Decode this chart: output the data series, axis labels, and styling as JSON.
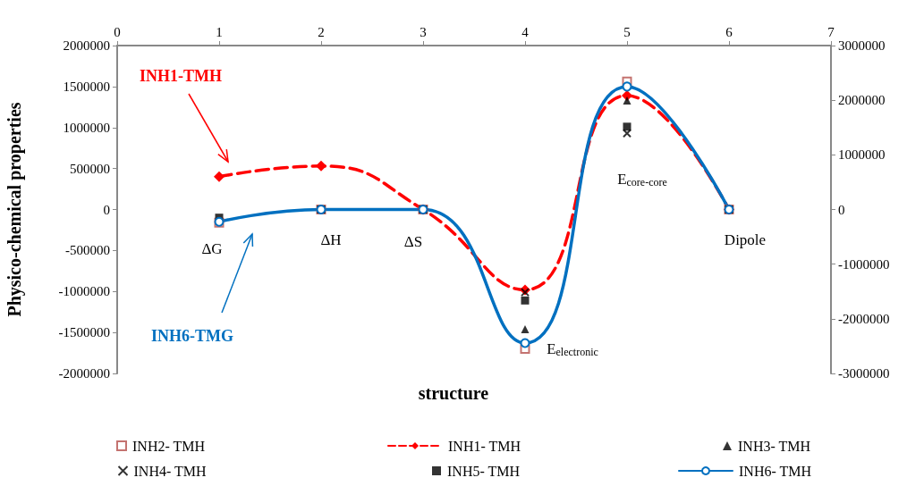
{
  "chart_data": {
    "type": "scatter",
    "xlabel": "structure",
    "ylabel": "Physico-chemical properties",
    "xlim": [
      0,
      7
    ],
    "xticks": [
      0,
      1,
      2,
      3,
      4,
      5,
      6,
      7
    ],
    "ylim": [
      -2000000,
      2000000
    ],
    "yticks": [
      -2000000,
      -1500000,
      -1000000,
      -500000,
      0,
      500000,
      1000000,
      1500000,
      2000000
    ],
    "y2lim": [
      -3000000,
      3000000
    ],
    "y2ticks": [
      -3000000,
      -2000000,
      -1000000,
      0,
      1000000,
      2000000,
      3000000
    ],
    "grid": false,
    "legend": "bottom",
    "x": [
      1,
      2,
      3,
      4,
      5,
      6
    ],
    "series": [
      {
        "name": "INH2- TMH",
        "marker": "square",
        "color": "#b5504c",
        "values": [
          -160000,
          0,
          0,
          -1700000,
          1560000,
          0
        ]
      },
      {
        "name": "INH1- TMH",
        "type": "line",
        "marker": "diamond",
        "line_style": "dashed",
        "color": "#ff0000",
        "values": [
          400000,
          530000,
          0,
          -980000,
          1390000,
          0
        ]
      },
      {
        "name": "INH3- TMH",
        "marker": "triangle",
        "color": "#000000",
        "values": [
          null,
          null,
          null,
          -1460000,
          1330000,
          null
        ]
      },
      {
        "name": "INH4- TMH",
        "marker": "cross",
        "color": "#000000",
        "values": [
          null,
          0,
          0,
          -1010000,
          930000,
          0
        ]
      },
      {
        "name": "INH5- TMH",
        "marker": "square",
        "color": "#000000",
        "values": [
          -100000,
          0,
          0,
          -1110000,
          1010000,
          0
        ]
      },
      {
        "name": "INH6- TMH",
        "type": "line",
        "marker": "circle",
        "line_style": "solid",
        "color": "#0070c0",
        "values": [
          -150000,
          0,
          0,
          -1630000,
          1500000,
          0
        ]
      }
    ],
    "annotations": [
      "ΔG",
      "ΔH",
      "ΔS",
      "E$_{electronic}$",
      "E$_{core-core}$",
      "Dipole",
      "INH1-TMH",
      "INH6-TMG"
    ]
  }
}
